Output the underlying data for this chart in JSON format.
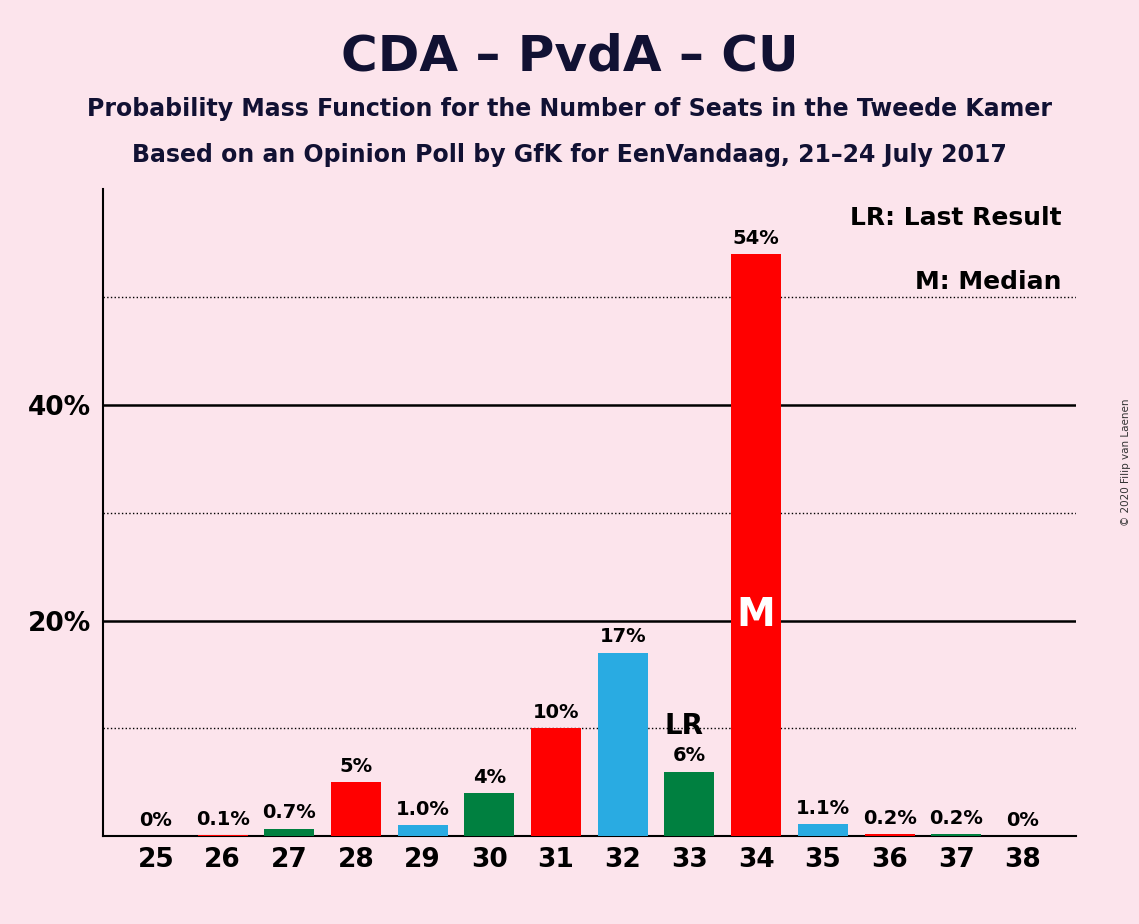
{
  "title": "CDA – PvdA – CU",
  "subtitle1": "Probability Mass Function for the Number of Seats in the Tweede Kamer",
  "subtitle2": "Based on an Opinion Poll by GfK for EenVandaag, 21–24 July 2017",
  "copyright": "© 2020 Filip van Laenen",
  "seats": [
    25,
    26,
    27,
    28,
    29,
    30,
    31,
    32,
    33,
    34,
    35,
    36,
    37,
    38
  ],
  "probabilities": [
    0.0,
    0.1,
    0.7,
    5.0,
    1.0,
    4.0,
    10.0,
    17.0,
    6.0,
    54.0,
    1.1,
    0.2,
    0.2,
    0.0
  ],
  "labels": [
    "0%",
    "0.1%",
    "0.7%",
    "5%",
    "1.0%",
    "4%",
    "10%",
    "17%",
    "6%",
    "54%",
    "1.1%",
    "0.2%",
    "0.2%",
    "0%"
  ],
  "bar_colors": [
    "#FF0000",
    "#FF0000",
    "#008040",
    "#FF0000",
    "#29ABE2",
    "#008040",
    "#FF0000",
    "#29ABE2",
    "#008040",
    "#FF0000",
    "#29ABE2",
    "#FF0000",
    "#008040",
    "#FF0000"
  ],
  "last_result_seat": 32,
  "median_seat": 34,
  "lr_label": "LR",
  "median_label": "M",
  "legend_lr": "LR: Last Result",
  "legend_m": "M: Median",
  "background_color": "#fce4ec",
  "ylim": [
    0,
    60
  ],
  "solid_yticks": [
    20,
    40
  ],
  "dotted_yticks": [
    10,
    30,
    50
  ],
  "ytick_labels_positions": [
    20,
    40
  ],
  "ytick_labels_values": [
    "20%",
    "40%"
  ],
  "title_fontsize": 36,
  "subtitle_fontsize": 17,
  "label_fontsize": 14,
  "tick_fontsize": 19,
  "legend_fontsize": 18,
  "annotation_fontsize_lr": 20,
  "annotation_fontsize_m": 28
}
